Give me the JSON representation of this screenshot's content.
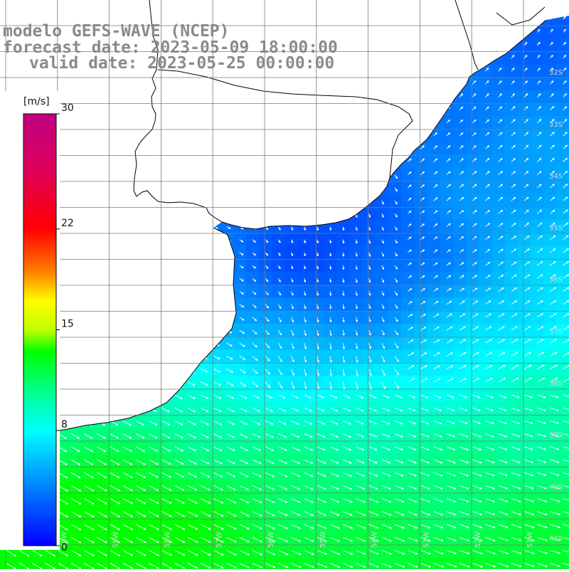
{
  "title": {
    "line1": "modelo GEFS-WAVE (NCEP)",
    "line2": "forecast date: 2023-05-09 18:00:00",
    "line3": "valid date: 2023-05-25 00:00:00"
  },
  "colorbar": {
    "unit": "[m/s]",
    "ticks": [
      "30",
      "22",
      "15",
      "8",
      "0"
    ],
    "tick_values": [
      30,
      22,
      15,
      8,
      0
    ],
    "range": [
      0,
      30
    ],
    "stops": [
      {
        "v": 0,
        "c": "#0000ff"
      },
      {
        "v": 4,
        "c": "#0080ff"
      },
      {
        "v": 8,
        "c": "#00ffff"
      },
      {
        "v": 11,
        "c": "#00ff80"
      },
      {
        "v": 13.5,
        "c": "#00ff00"
      },
      {
        "v": 15,
        "c": "#c0ff00"
      },
      {
        "v": 17,
        "c": "#ffff00"
      },
      {
        "v": 19,
        "c": "#ff8000"
      },
      {
        "v": 22,
        "c": "#ff0000"
      },
      {
        "v": 26,
        "c": "#e0005a"
      },
      {
        "v": 30,
        "c": "#c00080"
      }
    ]
  },
  "grid": {
    "lon_labels": [
      "61W",
      "60W",
      "59W",
      "58W",
      "57W",
      "56W",
      "55W",
      "54W",
      "53W",
      "52W",
      "51W"
    ],
    "lat_labels": [
      "32S",
      "33S",
      "34S",
      "35S",
      "36S",
      "37S",
      "38S",
      "39S",
      "40S",
      "41S"
    ]
  },
  "colors": {
    "land": "#ffffff",
    "coastline": "#000000",
    "gridline": "#7a7a7a",
    "arrow": "#ffffff",
    "title": "#8a8a8a"
  }
}
